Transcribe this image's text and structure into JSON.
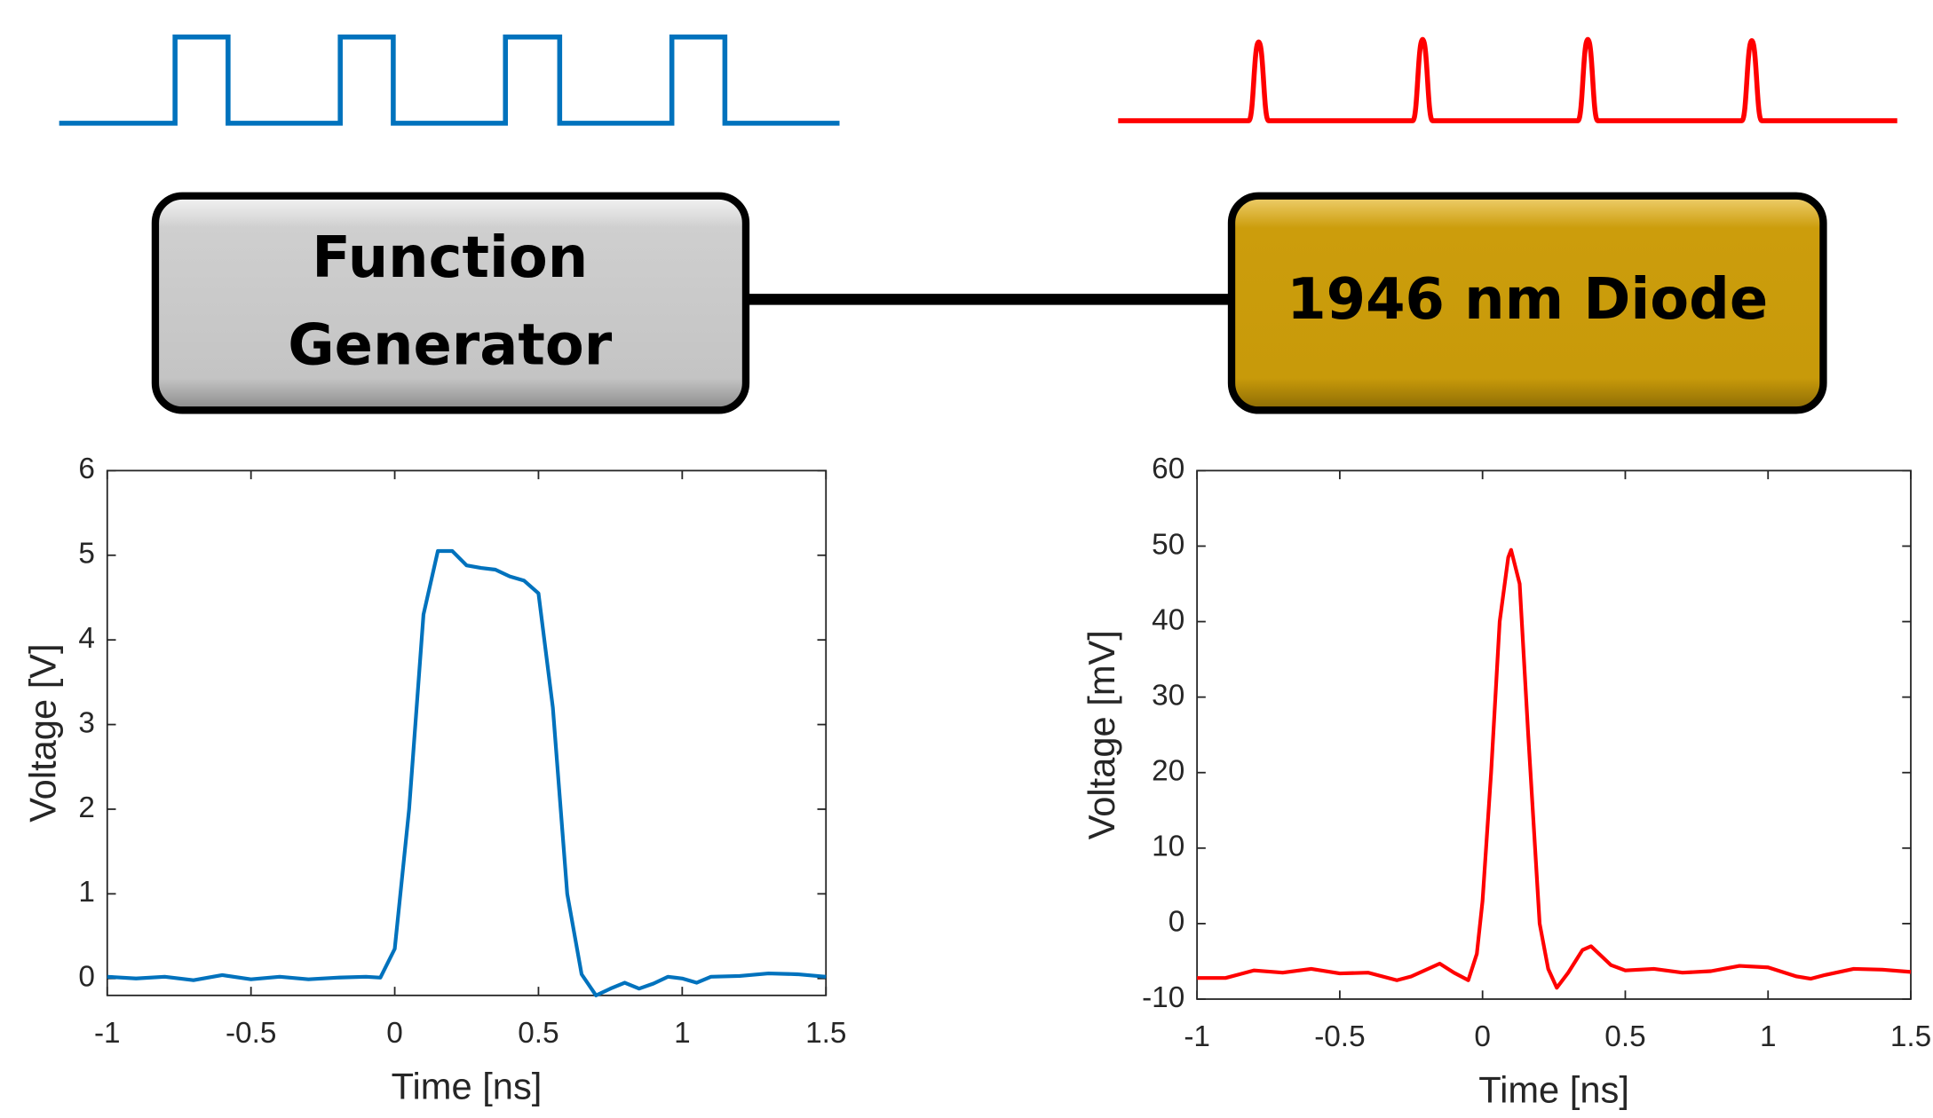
{
  "nodes": [
    {
      "label_lines": [
        "Function",
        "Generator"
      ]
    },
    {
      "label_lines": [
        "1946 nm Diode"
      ]
    }
  ],
  "chart_data": [
    {
      "type": "line",
      "xlabel": "Time [ns]",
      "ylabel": "Voltage [V]",
      "color": "#0072bd",
      "xlim": [
        -1,
        1.5
      ],
      "ylim": [
        -0.2,
        6
      ],
      "xticks": [
        -1,
        -0.5,
        0,
        0.5,
        1,
        1.5
      ],
      "yticks": [
        0,
        1,
        2,
        3,
        4,
        5,
        6
      ],
      "x": [
        -1,
        -0.9,
        -0.8,
        -0.7,
        -0.6,
        -0.5,
        -0.4,
        -0.3,
        -0.2,
        -0.1,
        -0.05,
        0,
        0.05,
        0.1,
        0.15,
        0.2,
        0.25,
        0.3,
        0.35,
        0.4,
        0.45,
        0.5,
        0.55,
        0.6,
        0.65,
        0.7,
        0.75,
        0.8,
        0.85,
        0.9,
        0.95,
        1,
        1.05,
        1.1,
        1.2,
        1.3,
        1.4,
        1.5
      ],
      "values": [
        0.02,
        0,
        0.02,
        -0.02,
        0.04,
        -0.01,
        0.02,
        -0.01,
        0.01,
        0.02,
        0.01,
        0.35,
        2.0,
        4.3,
        5.05,
        5.05,
        4.88,
        4.85,
        4.83,
        4.75,
        4.7,
        4.55,
        3.2,
        1.0,
        0.05,
        -0.2,
        -0.12,
        -0.05,
        -0.12,
        -0.06,
        0.02,
        0,
        -0.05,
        0.02,
        0.03,
        0.06,
        0.05,
        0.02
      ]
    },
    {
      "type": "line",
      "xlabel": "Time [ns]",
      "ylabel": "Voltage [mV]",
      "color": "#ff0000",
      "xlim": [
        -1,
        1.5
      ],
      "ylim": [
        -10,
        60
      ],
      "xticks": [
        -1,
        -0.5,
        0,
        0.5,
        1,
        1.5
      ],
      "yticks": [
        -10,
        0,
        10,
        20,
        30,
        40,
        50,
        60
      ],
      "x": [
        -1,
        -0.9,
        -0.8,
        -0.7,
        -0.6,
        -0.5,
        -0.4,
        -0.3,
        -0.25,
        -0.15,
        -0.1,
        -0.05,
        -0.02,
        0,
        0.03,
        0.06,
        0.09,
        0.1,
        0.13,
        0.16,
        0.2,
        0.23,
        0.26,
        0.3,
        0.35,
        0.38,
        0.45,
        0.5,
        0.6,
        0.7,
        0.8,
        0.9,
        1,
        1.1,
        1.15,
        1.2,
        1.3,
        1.4,
        1.5
      ],
      "values": [
        -7.2,
        -7.2,
        -6.2,
        -6.5,
        -6,
        -6.6,
        -6.5,
        -7.5,
        -7,
        -5.3,
        -6.5,
        -7.5,
        -4,
        3,
        20,
        40,
        48.5,
        49.5,
        45,
        25,
        0,
        -6,
        -8.5,
        -6.5,
        -3.5,
        -3,
        -5.5,
        -6.2,
        -6,
        -6.5,
        -6.3,
        -5.6,
        -5.8,
        -7,
        -7.3,
        -6.8,
        -6,
        -6.1,
        -6.4
      ]
    }
  ]
}
